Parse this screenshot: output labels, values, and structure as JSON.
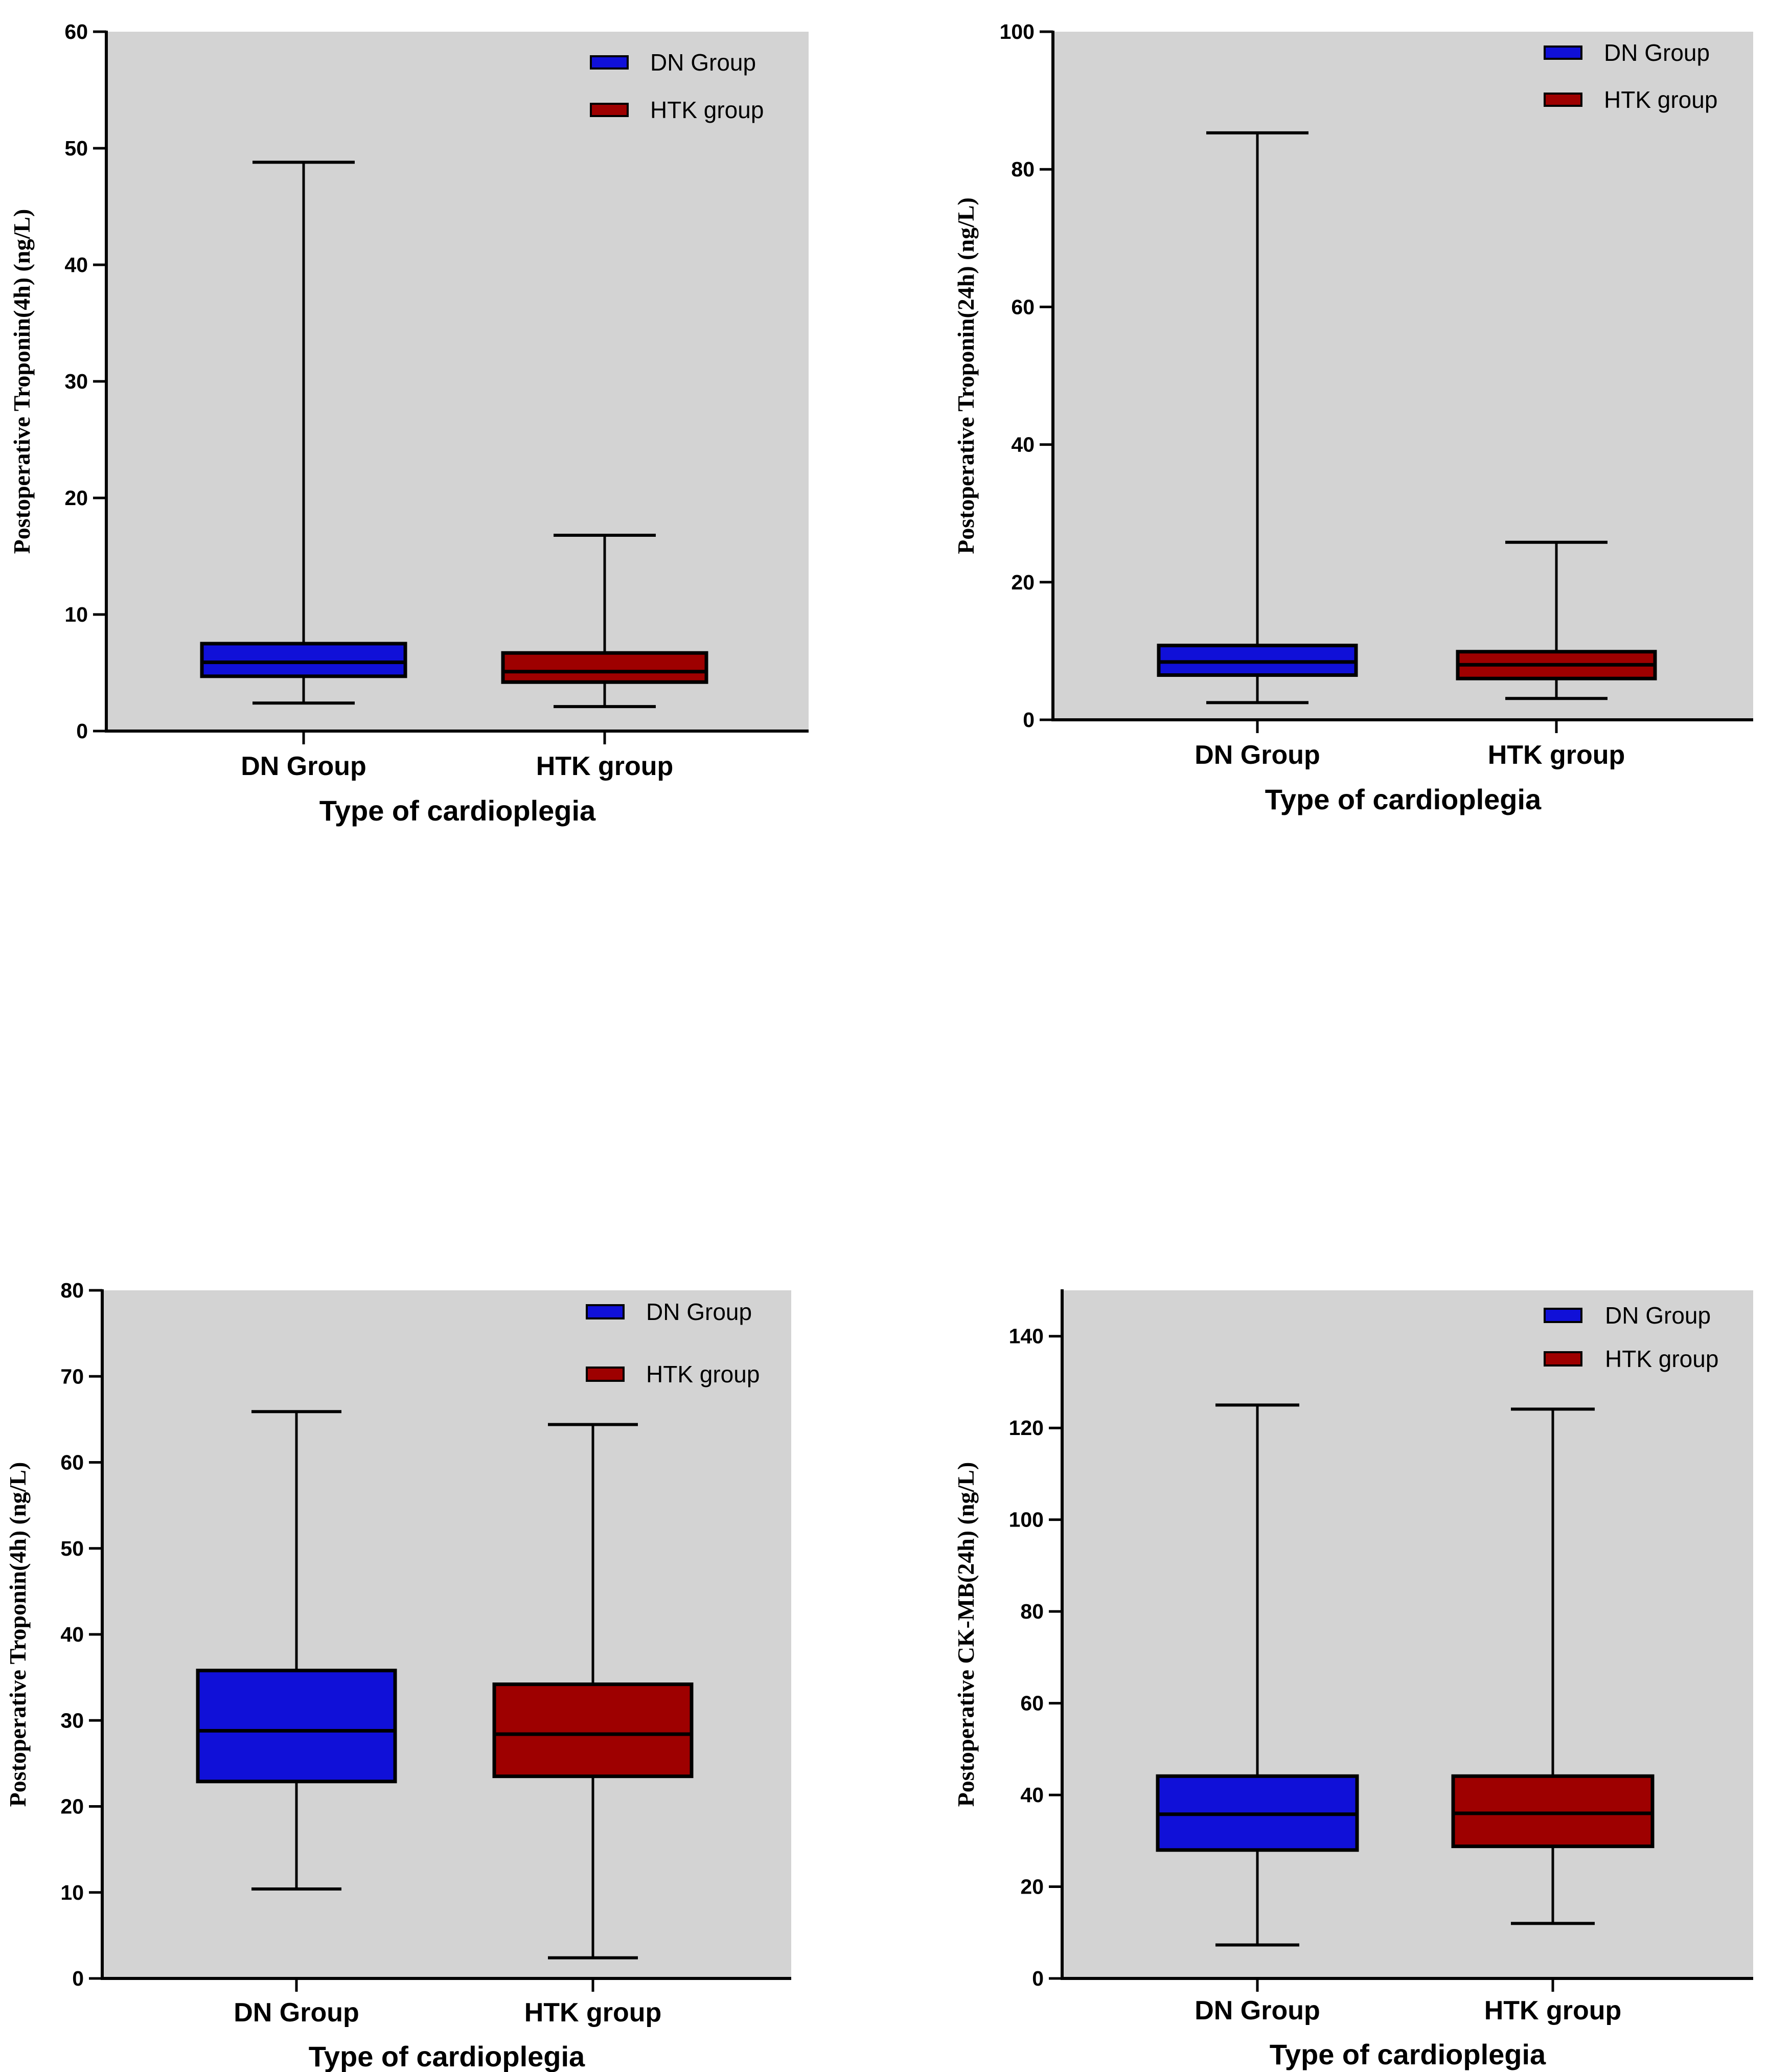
{
  "colors": {
    "plot_bg": "#d3d3d3",
    "dn": "#1010d8",
    "htk": "#9e0000",
    "stroke": "#000000"
  },
  "chart_data": [
    {
      "type": "box",
      "ylabel": "Postoperative Troponin(4h) (ng/L)",
      "xlabel": "Type of cardioplegia",
      "ylim": [
        0,
        60
      ],
      "ticks": [
        0,
        10,
        20,
        30,
        40,
        50,
        60
      ],
      "tick_labels": [
        "0",
        "10",
        "20",
        "30",
        "40",
        "50",
        "60"
      ],
      "legend": [
        "DN Group",
        "HTK group"
      ],
      "series": [
        {
          "name": "DN Group",
          "min": 2.4,
          "q1": 4.7,
          "median": 5.9,
          "q3": 7.5,
          "max": 48.8
        },
        {
          "name": "HTK group",
          "min": 2.1,
          "q1": 4.2,
          "median": 5.1,
          "q3": 6.7,
          "max": 16.8
        }
      ]
    },
    {
      "type": "box",
      "ylabel": "Postoperative Troponin(24h) (ng/L)",
      "xlabel": "Type of cardioplegia",
      "ylim": [
        0,
        100
      ],
      "ticks": [
        0,
        20,
        40,
        60,
        80,
        100
      ],
      "tick_labels": [
        "0",
        "20",
        "40",
        "60",
        "80",
        "100"
      ],
      "legend": [
        "DN Group",
        "HTK group"
      ],
      "series": [
        {
          "name": "DN Group",
          "min": 2.5,
          "q1": 6.5,
          "median": 8.4,
          "q3": 10.8,
          "max": 85.3
        },
        {
          "name": "HTK group",
          "min": 3.1,
          "q1": 6.0,
          "median": 8.0,
          "q3": 9.9,
          "max": 25.8
        }
      ]
    },
    {
      "type": "box",
      "ylabel": "Postoperative Troponin(4h) (ng/L)",
      "xlabel": "Type of cardioplegia",
      "ylim": [
        0,
        80
      ],
      "ticks": [
        0,
        10,
        20,
        30,
        40,
        50,
        60,
        70,
        80
      ],
      "tick_labels": [
        "0",
        "10",
        "20",
        "30",
        "40",
        "50",
        "60",
        "70",
        "80"
      ],
      "legend": [
        "DN Group",
        "HTK group"
      ],
      "series": [
        {
          "name": "DN Group",
          "min": 10.4,
          "q1": 22.9,
          "median": 28.8,
          "q3": 35.8,
          "max": 65.9
        },
        {
          "name": "HTK group",
          "min": 2.4,
          "q1": 23.5,
          "median": 28.4,
          "q3": 34.2,
          "max": 64.4
        }
      ]
    },
    {
      "type": "box",
      "ylabel": "Postoperative CK-MB(24h) (ng/L)",
      "xlabel": "Type of cardioplegia",
      "ylim": [
        0,
        150
      ],
      "ticks": [
        0,
        20,
        40,
        60,
        80,
        100,
        120,
        140
      ],
      "tick_labels": [
        "0",
        "20",
        "40",
        "60",
        "80",
        "100",
        "120",
        "140"
      ],
      "legend": [
        "DN Group",
        "HTK group"
      ],
      "series": [
        {
          "name": "DN Group",
          "min": 7.3,
          "q1": 28.0,
          "median": 35.8,
          "q3": 44.1,
          "max": 125.0
        },
        {
          "name": "HTK group",
          "min": 12.0,
          "q1": 28.8,
          "median": 36.0,
          "q3": 44.1,
          "max": 124.1
        }
      ]
    }
  ]
}
